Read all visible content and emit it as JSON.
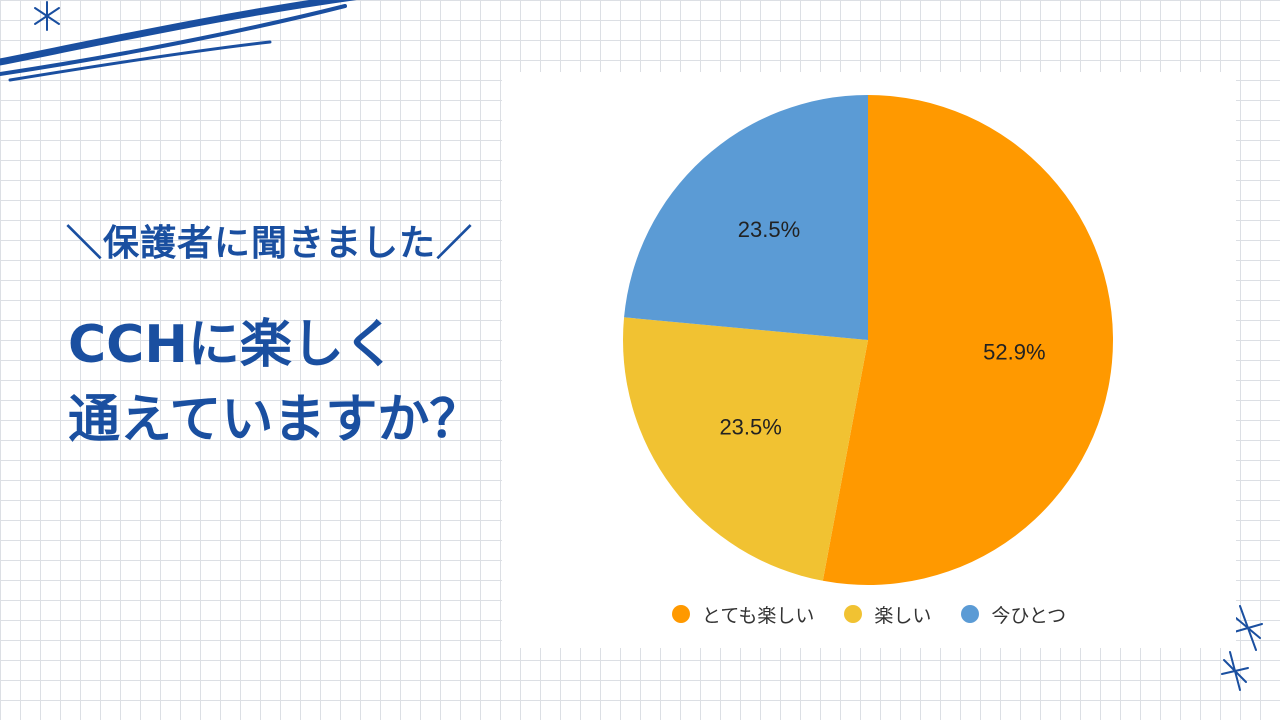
{
  "heading": {
    "subtitle": "＼保護者に聞きました／",
    "title_line1": "CCHに楽しく",
    "title_line2": "通えていますか？"
  },
  "chart_data": {
    "type": "pie",
    "labels": [
      "とても楽しい",
      "楽しい",
      "今ひとつ"
    ],
    "values": [
      52.9,
      23.5,
      23.5
    ],
    "value_labels": [
      "52.9%",
      "23.5%",
      "23.5%"
    ],
    "colors": [
      "#ff9900",
      "#f1c232",
      "#5b9bd5"
    ],
    "start": "12 o'clock, clockwise",
    "legend_position": "bottom"
  }
}
